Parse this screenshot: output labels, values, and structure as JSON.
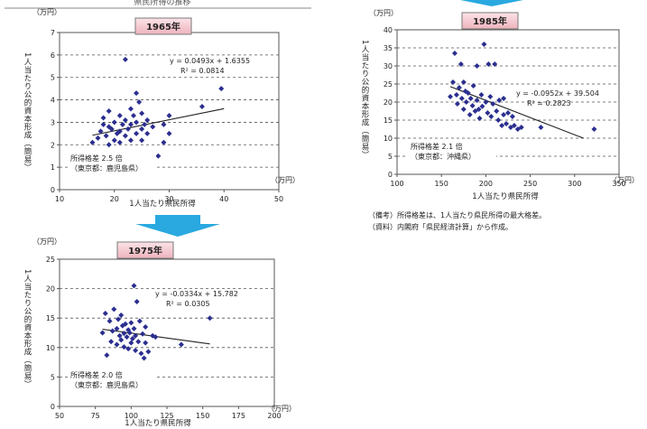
{
  "header_text": "県民所得の推移",
  "note": {
    "line1": "（備考）所得格差は、1人当たり県民所得の最大格差。",
    "line2": "（資料）内閣府「県民経済計算」から作成。"
  },
  "colors": {
    "marker": "#2b2f8f",
    "arrow": "#29a9e0",
    "title_fill": "#f6c9d0",
    "title_border": "#7a7a7a",
    "trendline": "#222222"
  },
  "chart_data": [
    {
      "type": "scatter",
      "title": "1965年",
      "yunit": "（万円）",
      "xunit": "（万円）",
      "ylabel": "1人当たり公的資本形成（簡易）",
      "xlabel": "1人当たり県民所得",
      "xlim": [
        10,
        50
      ],
      "xticks": [
        10,
        20,
        30,
        40,
        50
      ],
      "ylim": [
        0,
        7
      ],
      "yticks": [
        0,
        1,
        2,
        3,
        4,
        5,
        6,
        7
      ],
      "grid": "dashed-horizontal",
      "equation": "y = 0.0493x + 1.6355",
      "r2": "R² = 0.0814",
      "trend": {
        "slope": 0.0493,
        "intercept": 1.6355,
        "x0": 16,
        "x1": 40
      },
      "gap_label": "所得格差 2.5 倍",
      "gap_detail": "（東京都：鹿児島県）",
      "points": [
        [
          16,
          2.1
        ],
        [
          17,
          2.3
        ],
        [
          17.5,
          2.6
        ],
        [
          18,
          3.2
        ],
        [
          18,
          2.9
        ],
        [
          18.5,
          2.4
        ],
        [
          19,
          3.5
        ],
        [
          19,
          2.8
        ],
        [
          19,
          2.0
        ],
        [
          19.5,
          2.7
        ],
        [
          20,
          2.2
        ],
        [
          20,
          3.0
        ],
        [
          20.5,
          2.5
        ],
        [
          21,
          3.3
        ],
        [
          21,
          2.6
        ],
        [
          21,
          2.1
        ],
        [
          21.5,
          2.9
        ],
        [
          22,
          5.8
        ],
        [
          22,
          2.4
        ],
        [
          22,
          3.1
        ],
        [
          22.5,
          2.7
        ],
        [
          23,
          3.6
        ],
        [
          23,
          2.2
        ],
        [
          23,
          2.9
        ],
        [
          23.5,
          3.3
        ],
        [
          24,
          4.3
        ],
        [
          24,
          2.5
        ],
        [
          24,
          3.0
        ],
        [
          24.5,
          3.9
        ],
        [
          25,
          2.7
        ],
        [
          25,
          2.2
        ],
        [
          25,
          3.4
        ],
        [
          25.5,
          2.9
        ],
        [
          26,
          2.5
        ],
        [
          26,
          3.1
        ],
        [
          27,
          2.8
        ],
        [
          28,
          1.5
        ],
        [
          29,
          2.1
        ],
        [
          29,
          2.9
        ],
        [
          30,
          3.3
        ],
        [
          30,
          2.5
        ],
        [
          36,
          3.7
        ],
        [
          39.5,
          4.5
        ]
      ]
    },
    {
      "type": "scatter",
      "title": "1975年",
      "yunit": "（万円）",
      "xunit": "（万円）",
      "ylabel": "1人当たり公的資本形成（簡易）",
      "xlabel": "1人当たり県民所得",
      "xlim": [
        50,
        200
      ],
      "xticks": [
        50,
        75,
        100,
        125,
        150,
        175,
        200
      ],
      "ylim": [
        0,
        25
      ],
      "yticks": [
        0,
        5,
        10,
        15,
        20,
        25
      ],
      "grid": "dashed-horizontal",
      "equation": "y = -0.0334x + 15.782",
      "r2": "R² = 0.0305",
      "trend": {
        "slope": -0.0334,
        "intercept": 15.782,
        "x0": 80,
        "x1": 155
      },
      "gap_label": "所得格差 2.0 倍",
      "gap_detail": "（東京都：鹿児島県）",
      "points": [
        [
          80,
          12.5
        ],
        [
          82,
          15.8
        ],
        [
          83,
          8.7
        ],
        [
          85,
          14.5
        ],
        [
          86,
          11.0
        ],
        [
          87,
          12.8
        ],
        [
          88,
          16.5
        ],
        [
          90,
          13.2
        ],
        [
          90,
          10.5
        ],
        [
          91,
          14.8
        ],
        [
          92,
          12.0
        ],
        [
          93,
          11.3
        ],
        [
          93,
          15.5
        ],
        [
          94,
          13.7
        ],
        [
          95,
          10.1
        ],
        [
          95,
          12.4
        ],
        [
          96,
          14.0
        ],
        [
          97,
          11.8
        ],
        [
          98,
          9.8
        ],
        [
          98,
          13.0
        ],
        [
          99,
          12.5
        ],
        [
          100,
          10.8
        ],
        [
          100,
          14.2
        ],
        [
          101,
          11.5
        ],
        [
          102,
          20.5
        ],
        [
          102,
          13.2
        ],
        [
          103,
          9.5
        ],
        [
          103,
          12.0
        ],
        [
          104,
          17.8
        ],
        [
          105,
          11.0
        ],
        [
          106,
          14.5
        ],
        [
          107,
          9.0
        ],
        [
          108,
          12.3
        ],
        [
          109,
          8.2
        ],
        [
          110,
          13.5
        ],
        [
          110,
          10.8
        ],
        [
          112,
          9.3
        ],
        [
          115,
          12.0
        ],
        [
          117,
          11.8
        ],
        [
          135,
          10.5
        ],
        [
          155,
          15.0
        ]
      ]
    },
    {
      "type": "scatter",
      "title": "1985年",
      "yunit": "（万円）",
      "xunit": "（万円）",
      "ylabel": "1人当たり公的資本形成（簡易）",
      "xlabel": "1人当たり県民所得",
      "xlim": [
        100,
        350
      ],
      "xticks": [
        100,
        150,
        200,
        250,
        300,
        350
      ],
      "ylim": [
        0,
        40
      ],
      "yticks": [
        0,
        5,
        10,
        15,
        20,
        25,
        30,
        35,
        40
      ],
      "grid": "dashed-horizontal",
      "equation": "y = -0.0952x + 39.504",
      "r2": "R² = 0.2823",
      "trend": {
        "slope": -0.0952,
        "intercept": 39.504,
        "x0": 160,
        "x1": 310
      },
      "gap_label": "所得格差 2.1 倍",
      "gap_detail": "（東京都：沖縄県）",
      "points": [
        [
          160,
          21.5
        ],
        [
          163,
          25.5
        ],
        [
          165,
          33.5
        ],
        [
          167,
          22.0
        ],
        [
          168,
          19.5
        ],
        [
          170,
          24.0
        ],
        [
          172,
          30.5
        ],
        [
          173,
          21.0
        ],
        [
          175,
          25.5
        ],
        [
          175,
          18.0
        ],
        [
          177,
          23.0
        ],
        [
          178,
          20.0
        ],
        [
          180,
          22.5
        ],
        [
          182,
          16.5
        ],
        [
          183,
          21.0
        ],
        [
          185,
          19.0
        ],
        [
          186,
          24.5
        ],
        [
          188,
          17.5
        ],
        [
          190,
          30.0
        ],
        [
          190,
          20.5
        ],
        [
          192,
          18.0
        ],
        [
          193,
          15.5
        ],
        [
          195,
          22.0
        ],
        [
          196,
          18.8
        ],
        [
          198,
          36.0
        ],
        [
          200,
          20.0
        ],
        [
          202,
          17.0
        ],
        [
          203,
          30.5
        ],
        [
          205,
          21.5
        ],
        [
          206,
          16.0
        ],
        [
          208,
          19.5
        ],
        [
          210,
          30.5
        ],
        [
          212,
          17.5
        ],
        [
          214,
          15.0
        ],
        [
          215,
          20.5
        ],
        [
          218,
          13.5
        ],
        [
          220,
          16.5
        ],
        [
          220,
          21.0
        ],
        [
          223,
          14.0
        ],
        [
          225,
          17.0
        ],
        [
          228,
          13.0
        ],
        [
          230,
          16.0
        ],
        [
          232,
          13.5
        ],
        [
          236,
          12.5
        ],
        [
          240,
          13.0
        ],
        [
          262,
          13.0
        ],
        [
          322,
          12.5
        ]
      ]
    }
  ]
}
